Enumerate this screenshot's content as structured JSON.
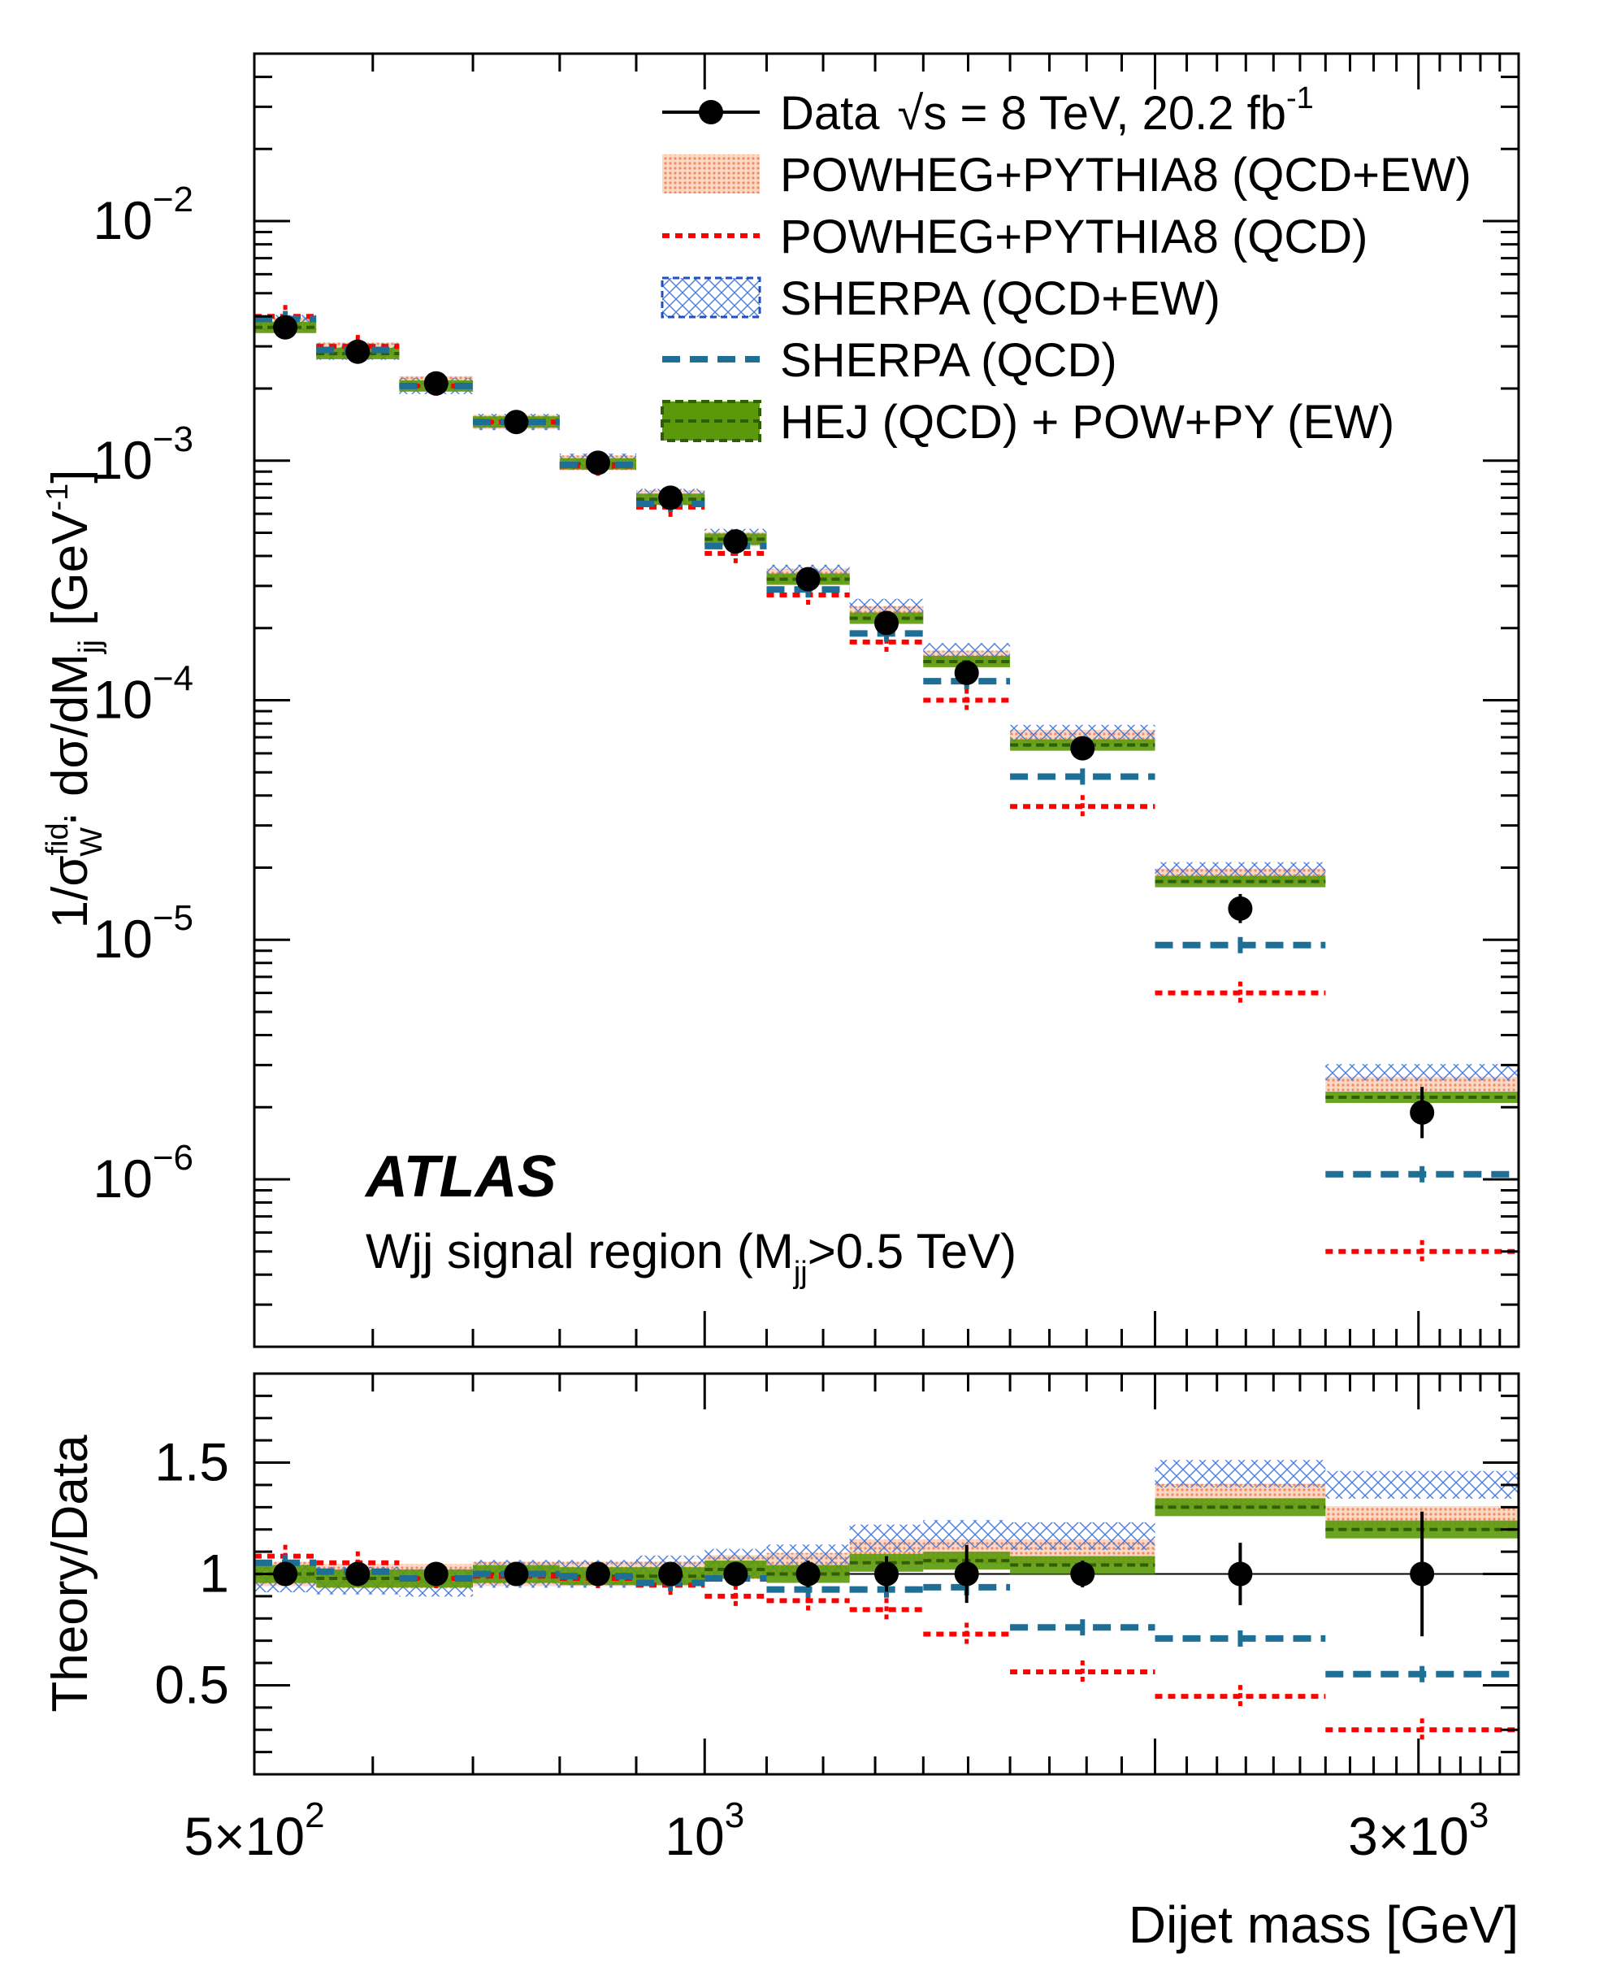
{
  "chart_data": {
    "type": "line",
    "title": "",
    "experiment": "ATLAS",
    "region_prefix": "Wjj signal region (M",
    "region_sub": "jj",
    "region_suffix": ">0.5 TeV)",
    "x_bins": [
      500,
      550,
      625,
      700,
      800,
      900,
      1000,
      1100,
      1250,
      1400,
      1600,
      2000,
      2600,
      3500
    ],
    "xlim": [
      500,
      3500
    ],
    "xlabel": "Dijet mass [GeV]",
    "x_tick_labels": [
      {
        "mant": "5",
        "exp": "2",
        "value": 500
      },
      {
        "mant": "",
        "exp": "3",
        "value": 1000
      },
      {
        "mant": "3",
        "exp": "3",
        "value": 3000
      }
    ],
    "top_panel": {
      "ylabel": "1/σ_W^fid · dσ/dM_jj [GeV^-1]",
      "yscale": "log",
      "ylim": [
        2e-07,
        0.05
      ],
      "y_tick_exponents": [
        "-2",
        "-3",
        "-4",
        "-5",
        "-6"
      ],
      "series": [
        {
          "name": "Data √s = 8 TeV, 20.2 fb-1",
          "style": "points",
          "values": [
            0.0036,
            0.00285,
            0.0021,
            0.00145,
            0.00098,
            0.0007,
            0.00046,
            0.00032,
            0.00021,
            0.00013,
            6.3e-05,
            1.35e-05,
            1.9e-06
          ]
        },
        {
          "name": "POWHEG+PYTHIA8 (QCD+EW)",
          "style": "band",
          "values": [
            0.0037,
            0.0029,
            0.0021,
            0.00145,
            0.00098,
            0.0007,
            0.00047,
            0.00033,
            0.00023,
            0.00015,
            7e-05,
            1.85e-05,
            2.5e-06
          ]
        },
        {
          "name": "POWHEG+PYTHIA8 (QCD)",
          "style": "dotted",
          "values": [
            0.004,
            0.003,
            0.00205,
            0.00145,
            0.00095,
            0.00064,
            0.00041,
            0.000275,
            0.000175,
            0.0001,
            3.6e-05,
            6e-06,
            5e-07
          ]
        },
        {
          "name": "SHERPA (QCD+EW)",
          "style": "hatch",
          "values": [
            0.00375,
            0.00285,
            0.00205,
            0.00145,
            0.00099,
            0.000705,
            0.00048,
            0.00034,
            0.000245,
            0.00016,
            7.3e-05,
            1.95e-05,
            2.8e-06
          ]
        },
        {
          "name": "SHERPA (QCD)",
          "style": "dashed",
          "values": [
            0.0039,
            0.0029,
            0.00205,
            0.00145,
            0.00096,
            0.00066,
            0.00044,
            0.00029,
            0.00019,
            0.00012,
            4.8e-05,
            9.5e-06,
            1.05e-06
          ]
        },
        {
          "name": "HEJ (QCD) + POW+PY (EW)",
          "style": "greenband",
          "values": [
            0.0036,
            0.0028,
            0.00205,
            0.00145,
            0.00097,
            0.00069,
            0.00047,
            0.00032,
            0.00022,
            0.000145,
            6.5e-05,
            1.75e-05,
            2.2e-06
          ]
        }
      ]
    },
    "ratio_panel": {
      "ylabel": "Theory/Data",
      "ylim": [
        0.1,
        1.9
      ],
      "y_ticks": [
        "1.5",
        "1",
        "0.5"
      ],
      "y_tick_values": [
        1.5,
        1.0,
        0.5
      ],
      "series": [
        {
          "name": "Data",
          "style": "points",
          "values": [
            1,
            1,
            1,
            1,
            1,
            1,
            1,
            1,
            1,
            1,
            1,
            1,
            1
          ]
        },
        {
          "name": "POWHEG+PYTHIA8 (QCD+EW)",
          "style": "band",
          "values": [
            1.0,
            0.99,
            0.99,
            1.0,
            1.0,
            1.0,
            1.03,
            1.04,
            1.1,
            1.1,
            1.1,
            1.35,
            1.25
          ]
        },
        {
          "name": "POWHEG+PYTHIA8 (QCD)",
          "style": "dotted",
          "values": [
            1.08,
            1.05,
            0.98,
            0.99,
            0.98,
            0.95,
            0.9,
            0.88,
            0.84,
            0.73,
            0.56,
            0.45,
            0.3
          ]
        },
        {
          "name": "SHERPA (QCD+EW)",
          "style": "hatch",
          "values": [
            0.98,
            0.97,
            0.96,
            1.0,
            1.0,
            1.02,
            1.05,
            1.07,
            1.16,
            1.18,
            1.17,
            1.45,
            1.4
          ]
        },
        {
          "name": "SHERPA (QCD)",
          "style": "dashed",
          "values": [
            1.05,
            1.01,
            0.98,
            1.0,
            0.99,
            0.96,
            0.98,
            0.93,
            0.93,
            0.94,
            0.76,
            0.71,
            0.55
          ]
        },
        {
          "name": "HEJ (QCD) + POW+PY (EW)",
          "style": "greenband",
          "values": [
            1.0,
            0.98,
            0.98,
            1.0,
            0.99,
            0.99,
            1.02,
            1.0,
            1.05,
            1.06,
            1.04,
            1.3,
            1.2
          ]
        }
      ]
    },
    "legend": {
      "placement": "top-right",
      "entries": [
        {
          "label": "Data",
          "sqrt_label": "s",
          "label_rest": " = 8 TeV, 20.2 fb",
          "sup": "-1",
          "style": "points"
        },
        {
          "label": "POWHEG+PYTHIA8 (QCD+EW)",
          "style": "band"
        },
        {
          "label": "POWHEG+PYTHIA8 (QCD)",
          "style": "dotted"
        },
        {
          "label": "SHERPA (QCD+EW)",
          "style": "hatch"
        },
        {
          "label": "SHERPA (QCD)",
          "style": "dashed"
        },
        {
          "label": "HEJ (QCD) + POW+PY (EW)",
          "style": "greenband"
        }
      ]
    },
    "colors": {
      "data": "#000000",
      "powheg_band": "#f4a582",
      "powheg_qcd": "#ff0000",
      "sherpa_hatch": "#4a7bd8",
      "sherpa_qcd": "#1f6e96",
      "hej": "#5a9a0a",
      "hej_dark": "#2f5e05"
    }
  }
}
